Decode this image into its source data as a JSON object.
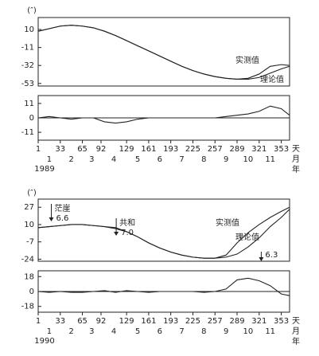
{
  "chart_data": [
    {
      "type": "line",
      "y_unit": "(″)",
      "x": [
        1,
        17,
        33,
        49,
        65,
        81,
        97,
        113,
        129,
        145,
        161,
        177,
        193,
        209,
        225,
        241,
        257,
        273,
        289,
        305,
        321,
        337,
        353,
        365
      ],
      "xlim": [
        1,
        365
      ],
      "ylim": [
        -56,
        24
      ],
      "yticks": [
        10,
        -11,
        -32,
        -53
      ],
      "series": [
        {
          "name": "实测值",
          "color": "#222222",
          "values": [
            8,
            11,
            14,
            15,
            14,
            12,
            8,
            3,
            -3,
            -9,
            -15,
            -21,
            -27,
            -33,
            -38,
            -42,
            -45,
            -47,
            -48,
            -47,
            -42,
            -33,
            -31,
            -32
          ]
        },
        {
          "name": "理论值",
          "color": "#222222",
          "values": [
            8,
            11,
            14,
            15,
            14,
            12,
            8,
            3,
            -3,
            -9,
            -15,
            -21,
            -27,
            -33,
            -38,
            -42,
            -45,
            -47,
            -48,
            -48,
            -46,
            -41,
            -36,
            -33
          ]
        }
      ]
    },
    {
      "type": "line",
      "x": [
        1,
        17,
        33,
        49,
        65,
        81,
        97,
        113,
        129,
        145,
        161,
        177,
        193,
        209,
        225,
        241,
        257,
        273,
        289,
        305,
        321,
        337,
        353,
        365
      ],
      "xlim": [
        1,
        365
      ],
      "ylim": [
        -17,
        17
      ],
      "yticks": [
        11,
        0,
        -11
      ],
      "values": [
        0,
        1,
        0,
        -1,
        0,
        0,
        -3,
        -4,
        -3,
        -1,
        0,
        0,
        0,
        0,
        0,
        0,
        0,
        1,
        2,
        3,
        5,
        9,
        7,
        2
      ],
      "color": "#222222",
      "xticks": [
        1,
        33,
        65,
        92,
        129,
        161,
        193,
        225,
        257,
        289,
        321,
        353
      ],
      "month_labels": [
        "1",
        "2",
        "3",
        "4",
        "5",
        "6",
        "7",
        "8",
        "9",
        "10",
        "11"
      ],
      "x_unit": "天",
      "month_unit": "月",
      "year_unit": "年",
      "year": "1989"
    },
    {
      "type": "line",
      "y_unit": "(″)",
      "x": [
        1,
        17,
        33,
        49,
        65,
        81,
        97,
        113,
        129,
        145,
        161,
        177,
        193,
        209,
        225,
        241,
        257,
        273,
        289,
        305,
        321,
        337,
        353,
        365
      ],
      "xlim": [
        1,
        365
      ],
      "ylim": [
        -26,
        35
      ],
      "yticks": [
        27,
        10,
        -7,
        -24
      ],
      "series": [
        {
          "name": "实测值",
          "color": "#222222",
          "values": [
            7,
            8,
            9,
            10,
            10,
            9,
            8,
            6,
            3,
            -2,
            -8,
            -13,
            -17,
            -20,
            -22,
            -23,
            -23,
            -20,
            -8,
            2,
            10,
            17,
            23,
            27
          ]
        },
        {
          "name": "理论值",
          "color": "#222222",
          "values": [
            7,
            8,
            9,
            10,
            10,
            9,
            8,
            7,
            3,
            -2,
            -8,
            -13,
            -17,
            -20,
            -22,
            -23,
            -23,
            -22,
            -19,
            -12,
            -3,
            8,
            17,
            25
          ]
        }
      ],
      "annotations": [
        {
          "label": "茫崖",
          "x": 20,
          "magnitude": {
            "value": 6.6,
            "label": "6.6"
          }
        },
        {
          "label": "共和",
          "x": 114,
          "magnitude": {
            "value": 7,
            "label": "7.0"
          }
        },
        {
          "x": 324,
          "magnitude": {
            "value": 6.3,
            "label": "6.3"
          }
        }
      ]
    },
    {
      "type": "line",
      "x": [
        1,
        17,
        33,
        49,
        65,
        81,
        97,
        113,
        129,
        145,
        161,
        177,
        193,
        209,
        225,
        241,
        257,
        273,
        289,
        305,
        321,
        337,
        353,
        365
      ],
      "xlim": [
        1,
        365
      ],
      "ylim": [
        -25,
        25
      ],
      "yticks": [
        18,
        0,
        -18
      ],
      "values": [
        0,
        -1,
        0,
        -1,
        -1,
        0,
        1,
        -1,
        1,
        0,
        -1,
        0,
        0,
        0,
        0,
        -1,
        0,
        3,
        14,
        16,
        13,
        7,
        -3,
        -5
      ],
      "color": "#222222",
      "xticks": [
        1,
        33,
        65,
        92,
        129,
        161,
        193,
        225,
        257,
        289,
        321,
        353
      ],
      "month_labels": [
        "1",
        "2",
        "3",
        "4",
        "5",
        "6",
        "7",
        "8",
        "9",
        "10",
        "11"
      ],
      "x_unit": "天",
      "month_unit": "月",
      "year_unit": "年",
      "year": "1990"
    }
  ]
}
